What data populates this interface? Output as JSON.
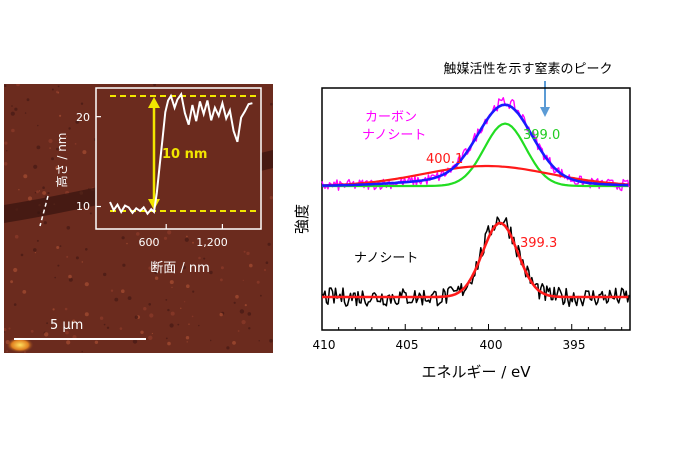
{
  "afm_panel": {
    "scale_bar_label": "5 μm",
    "inset": {
      "ylabel": "高さ / nm",
      "xlabel": "断面 / nm",
      "y_ticks": [
        "10",
        "20"
      ],
      "x_ticks": [
        "600",
        "1,200"
      ],
      "height_annotation": "10 nm",
      "guide_color": "#f2e600",
      "profile_color": "#ffffff",
      "profile": [
        [
          0,
          10.5
        ],
        [
          40,
          9.6
        ],
        [
          80,
          10.2
        ],
        [
          120,
          9.4
        ],
        [
          160,
          10.1
        ],
        [
          200,
          9.9
        ],
        [
          240,
          9.3
        ],
        [
          280,
          9.8
        ],
        [
          320,
          9.5
        ],
        [
          360,
          9.9
        ],
        [
          400,
          9.2
        ],
        [
          440,
          9.7
        ],
        [
          470,
          9.4
        ],
        [
          500,
          11.5
        ],
        [
          530,
          14.5
        ],
        [
          560,
          17.5
        ],
        [
          590,
          20.5
        ],
        [
          620,
          21.8
        ],
        [
          650,
          22.3
        ],
        [
          690,
          21.0
        ],
        [
          720,
          21.9
        ],
        [
          760,
          22.5
        ],
        [
          800,
          20.4
        ],
        [
          840,
          19.1
        ],
        [
          880,
          21.3
        ],
        [
          920,
          19.5
        ],
        [
          960,
          21.7
        ],
        [
          1000,
          20.3
        ],
        [
          1040,
          21.8
        ],
        [
          1080,
          19.6
        ],
        [
          1120,
          21.0
        ],
        [
          1160,
          20.1
        ],
        [
          1200,
          21.5
        ],
        [
          1240,
          19.8
        ],
        [
          1280,
          20.7
        ],
        [
          1320,
          18.4
        ],
        [
          1360,
          17.2
        ],
        [
          1400,
          19.9
        ],
        [
          1440,
          20.6
        ],
        [
          1480,
          21.4
        ],
        [
          1520,
          21.5
        ]
      ]
    }
  },
  "xps_panel": {
    "annotation_top": "触媒活性を示す窒素のピーク",
    "ylabel": "強度",
    "xlabel": "エネルギー / eV",
    "label_carbon": "カーボン",
    "label_nanosheet_top": "ナノシート",
    "label_nanosheet_bottom": "ナノシート",
    "peak_399_0": "399.0",
    "peak_400_1": "400.1",
    "peak_399_3": "399.3",
    "arrow_color": "#5b9bd5"
  },
  "chart_data": [
    {
      "type": "line",
      "title": "",
      "xlabel": "断面 / nm",
      "ylabel": "高さ / nm",
      "ylim": [
        7,
        23
      ],
      "xlim": [
        0,
        1580
      ],
      "series": [
        {
          "values_ref": "afm_panel.inset.profile",
          "color": "#ffffff"
        }
      ],
      "annotations": [
        "10 nm"
      ]
    },
    {
      "type": "line",
      "title": "",
      "xlabel": "エネルギー / eV",
      "ylabel": "強度",
      "x_reversed": true,
      "xlim": [
        410,
        391.5
      ],
      "x_ticks": [
        "410",
        "405",
        "400",
        "395"
      ],
      "annotations": [
        "触媒活性を示す窒素のピーク",
        "399.0",
        "400.1",
        "399.3",
        "カーボン",
        "ナノシート"
      ],
      "series": [
        {
          "name": "カーボン ナノシート",
          "color": "#ff00ff",
          "baseline": 1.0,
          "peaks": [
            {
              "center": 399.0,
              "height": 0.95,
              "width": 1.6
            },
            {
              "center": 400.1,
              "height": 0.1,
              "width": 4.0
            }
          ]
        },
        {
          "name": "",
          "color": "#1a1aff",
          "baseline": 1.0,
          "peaks": [
            {
              "center": 399.0,
              "height": 0.92,
              "width": 1.6
            },
            {
              "center": 400.1,
              "height": 0.1,
              "width": 4.0
            }
          ]
        },
        {
          "name": "",
          "color": "#22dd22",
          "baseline": 1.0,
          "peaks": [
            {
              "center": 399.0,
              "height": 0.78,
              "width": 1.25
            }
          ]
        },
        {
          "name": "",
          "color": "#ff1a1a",
          "baseline": 1.0,
          "peaks": [
            {
              "center": 400.1,
              "height": 0.25,
              "width": 3.8
            }
          ]
        },
        {
          "name": "ナノシート",
          "color": "#000000",
          "baseline": 0.0,
          "peaks": [
            {
              "center": 399.3,
              "height": 1.0,
              "width": 1.05
            }
          ]
        },
        {
          "name": "",
          "color": "#ff1a1a",
          "baseline": 0.0,
          "peaks": [
            {
              "center": 399.3,
              "height": 0.95,
              "width": 1.05
            }
          ]
        }
      ]
    }
  ]
}
